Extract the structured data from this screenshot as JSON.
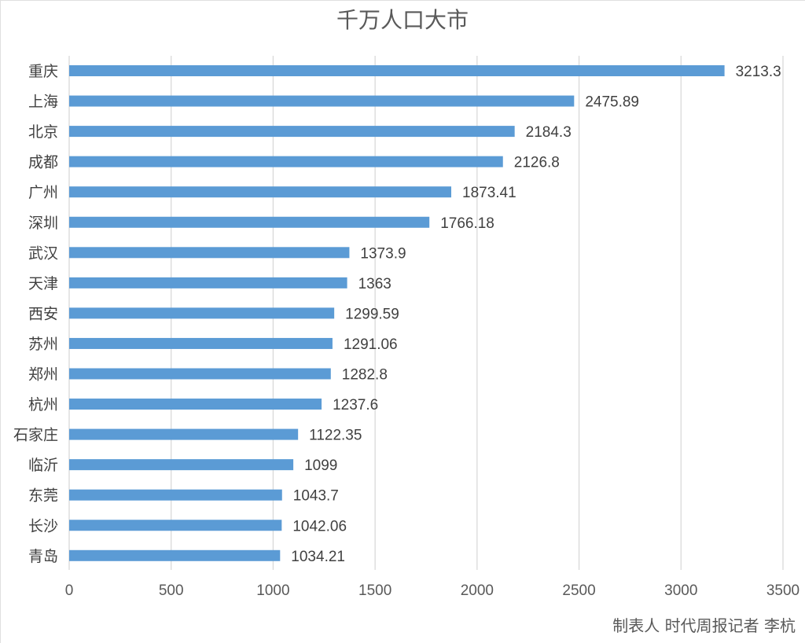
{
  "chart_data": {
    "type": "bar",
    "orientation": "horizontal",
    "title": "千万人口大市",
    "categories": [
      "重庆",
      "上海",
      "北京",
      "成都",
      "广州",
      "深圳",
      "武汉",
      "天津",
      "西安",
      "苏州",
      "郑州",
      "杭州",
      "石家庄",
      "临沂",
      "东莞",
      "长沙",
      "青岛"
    ],
    "values": [
      3213.3,
      2475.89,
      2184.3,
      2126.8,
      1873.41,
      1766.18,
      1373.9,
      1363,
      1299.59,
      1291.06,
      1282.8,
      1237.6,
      1122.35,
      1099,
      1043.7,
      1042.06,
      1034.21
    ],
    "value_labels": [
      "3213.3",
      "2475.89",
      "2184.3",
      "2126.8",
      "1873.41",
      "1766.18",
      "1373.9",
      "1363",
      "1299.59",
      "1291.06",
      "1282.8",
      "1237.6",
      "1122.35",
      "1099",
      "1043.7",
      "1042.06",
      "1034.21"
    ],
    "xlim": [
      0,
      3500
    ],
    "xticks": [
      "0",
      "500",
      "1000",
      "1500",
      "2000",
      "2500",
      "3000",
      "3500"
    ],
    "xlabel": "",
    "ylabel": "",
    "grid": "vertical",
    "legend": "none",
    "bar_color": "#5b9bd5",
    "grid_color": "#d9d9d9",
    "label_color": "#404040",
    "tick_color": "#595959"
  },
  "credit": "制表人 时代周报记者 李杭"
}
